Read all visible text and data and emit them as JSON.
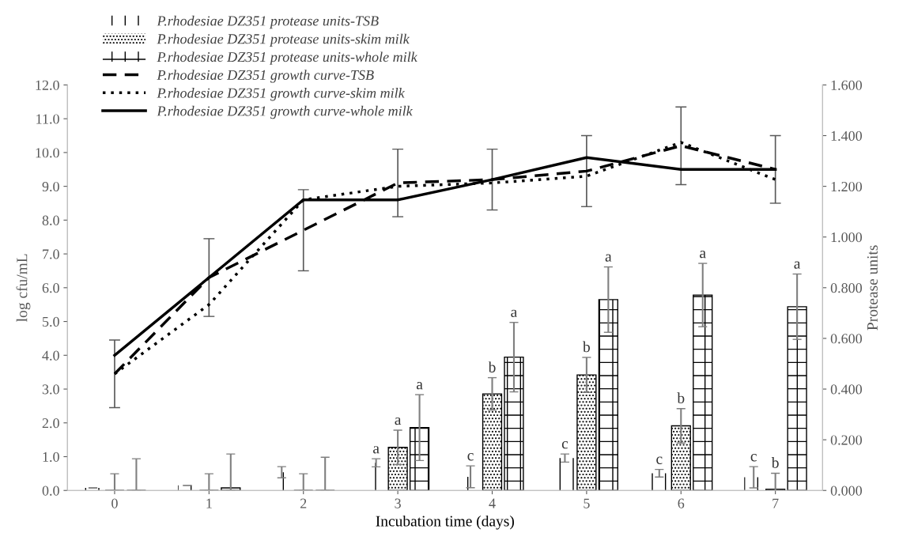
{
  "chart_data": {
    "type": "bar",
    "xlabel": "Incubation time (days)",
    "ylabel": "log cfu/mL",
    "y2label": "Protease units",
    "categories": [
      "0",
      "1",
      "2",
      "3",
      "4",
      "5",
      "6",
      "7"
    ],
    "ylim": [
      0,
      12
    ],
    "yticks": [
      {
        "value": 0,
        "label": "0.0"
      },
      {
        "value": 1,
        "label": "1.0"
      },
      {
        "value": 2,
        "label": "2.0"
      },
      {
        "value": 3,
        "label": "3.0"
      },
      {
        "value": 4,
        "label": "4.0"
      },
      {
        "value": 5,
        "label": "5.0"
      },
      {
        "value": 6,
        "label": "6.0"
      },
      {
        "value": 7,
        "label": "7.0"
      },
      {
        "value": 8,
        "label": "8.0"
      },
      {
        "value": 9,
        "label": "9.0"
      },
      {
        "value": 10,
        "label": "10.0"
      },
      {
        "value": 11,
        "label": "11.0"
      },
      {
        "value": 12,
        "label": "12.0"
      }
    ],
    "y2lim": [
      0,
      1.6
    ],
    "y2ticks": [
      {
        "value": 0,
        "label": "0.000"
      },
      {
        "value": 0.2,
        "label": "0.200"
      },
      {
        "value": 0.4,
        "label": "0.400"
      },
      {
        "value": 0.6,
        "label": "0.600"
      },
      {
        "value": 0.8,
        "label": "0.800"
      },
      {
        "value": 1.0,
        "label": "1.000"
      },
      {
        "value": 1.2,
        "label": "1.200"
      },
      {
        "value": 1.4,
        "label": "1.400"
      },
      {
        "value": 1.6,
        "label": "1.600"
      }
    ],
    "legend": "top left",
    "grid": false,
    "series": [
      {
        "name": "P.rhodesiae DZ351 protease units-TSB",
        "axis": "y2",
        "color": "#000000",
        "values": [
          0.01,
          0.02,
          0.072,
          0.109,
          0.054,
          0.128,
          0.068,
          0.052
        ],
        "errors": [
          null,
          null,
          0.022,
          0.016,
          0.043,
          0.016,
          0.015,
          [
            0.01,
            0.094
          ]
        ],
        "value_labels": [
          null,
          null,
          null,
          "a",
          "c",
          "c",
          "c",
          "c"
        ]
      },
      {
        "name": "P.rhodesiae DZ351 protease units-skim milk",
        "axis": "y2",
        "color": "#000000",
        "values": [
          0,
          0,
          0,
          0.17,
          0.381,
          0.456,
          0.255,
          0.005
        ],
        "errors": [
          [
            0,
            0.066
          ],
          [
            0,
            0.066
          ],
          [
            0,
            0.066
          ],
          0.068,
          0.064,
          0.069,
          0.068,
          [
            0,
            0.068
          ]
        ],
        "value_labels": [
          null,
          null,
          null,
          "a",
          "b",
          "b",
          "b",
          "b"
        ]
      },
      {
        "name": "P.rhodesiae DZ351 protease units-whole milk",
        "axis": "y2",
        "color": "#000000",
        "values": [
          0,
          0.01,
          0,
          0.248,
          0.526,
          0.753,
          0.771,
          0.725
        ],
        "errors": [
          [
            0,
            0.125
          ],
          [
            0,
            0.144
          ],
          [
            0,
            0.131
          ],
          0.13,
          0.137,
          0.129,
          0.125,
          0.129
        ],
        "value_labels": [
          null,
          null,
          null,
          "a",
          "a",
          "a",
          "a",
          "a"
        ]
      },
      {
        "name": "P.rhodesiae DZ351 growth curve-TSB",
        "type": "line",
        "line_style": "dashed",
        "color": "#000000",
        "values": [
          3.45,
          6.3,
          7.7,
          9.1,
          9.2,
          9.45,
          10.2,
          9.5
        ],
        "errors": [
          1.0,
          1.15,
          1.2,
          1.0,
          0.9,
          1.05,
          1.15,
          1.0
        ]
      },
      {
        "name": "P.rhodesiae DZ351 growth curve-skim milk",
        "type": "line",
        "line_style": "dotted",
        "color": "#000000",
        "values": [
          3.45,
          5.5,
          8.6,
          9.0,
          9.1,
          9.3,
          10.3,
          9.2
        ]
      },
      {
        "name": "P.rhodesiae DZ351 growth curve-whole milk",
        "type": "line",
        "line_style": "solid",
        "color": "#000000",
        "values": [
          4.0,
          6.3,
          8.6,
          8.6,
          9.2,
          9.85,
          9.5,
          9.5
        ]
      }
    ]
  }
}
